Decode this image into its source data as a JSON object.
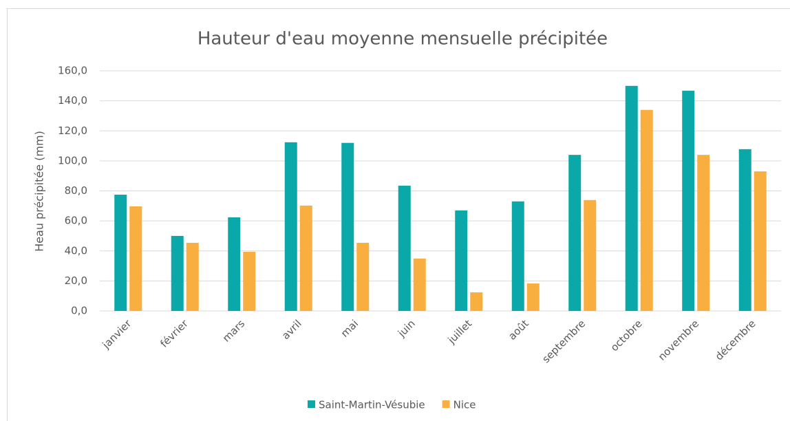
{
  "chart_data": {
    "type": "bar",
    "title": "Hauteur d'eau moyenne mensuelle précipitée",
    "y_label": "Heau précipitée (mm)",
    "categories": [
      "janvier",
      "février",
      "mars",
      "avril",
      "mai",
      "juin",
      "juillet",
      "août",
      "septembre",
      "octobre",
      "novembre",
      "décembre"
    ],
    "series": [
      {
        "name": "Saint-Martin-Vésubie",
        "color": "#0aa8a8",
        "values": [
          77.5,
          50,
          62.4,
          112.4,
          112,
          83.5,
          67,
          73,
          104,
          150,
          146.8,
          107.8
        ]
      },
      {
        "name": "Nice",
        "color": "#f9ae40",
        "values": [
          69.7,
          45.4,
          39.4,
          70.2,
          45.4,
          34.9,
          12.4,
          18.3,
          73.9,
          134,
          104,
          93
        ]
      }
    ],
    "ylim": [
      0,
      160
    ],
    "yticks": [
      {
        "value": 0,
        "label": "0,0"
      },
      {
        "value": 20,
        "label": "20,0"
      },
      {
        "value": 40,
        "label": "40,0"
      },
      {
        "value": 60,
        "label": "60,0"
      },
      {
        "value": 80,
        "label": "80,0"
      },
      {
        "value": 100,
        "label": "100,0"
      },
      {
        "value": 120,
        "label": "120,0"
      },
      {
        "value": 140,
        "label": "140,0"
      },
      {
        "value": 160,
        "label": "160,0"
      }
    ],
    "grid": true,
    "legend": "bottom"
  }
}
